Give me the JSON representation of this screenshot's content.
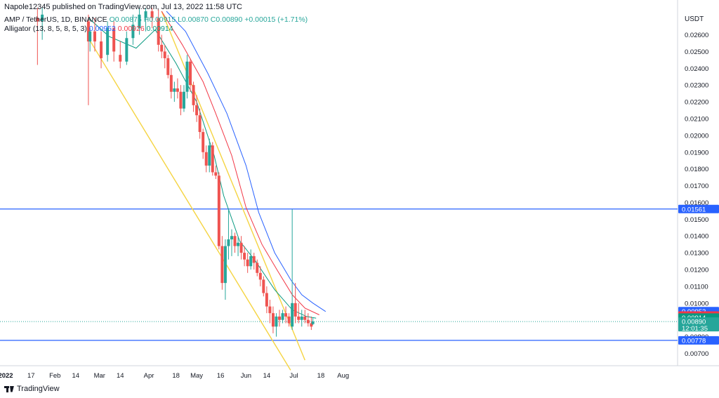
{
  "header": {
    "published": "Napole12345 published on TradingView.com, Jul 13, 2022 11:58 UTC"
  },
  "legend": {
    "symbol": "AMP / TetherUS, 1D, BINANCE",
    "ohlc": "O0.00875 H0.00915 L0.00870 C0.00890 +0.00015 (+1.71%)",
    "alligator_label": "Alligator (13, 8, 5, 8, 5, 3)",
    "jaw": "0.00952",
    "teeth": "0.00926",
    "lips": "0.00914"
  },
  "branding": {
    "name": "TradingView"
  },
  "colors": {
    "up": "#26a69a",
    "down": "#ef5350",
    "jaw": "#2962ff",
    "teeth": "#f23645",
    "lips": "#089981",
    "trendline": "#f5d442",
    "hline": "#2962ff"
  },
  "chart_data": {
    "type": "candlestick",
    "title": "AMP / TetherUS, 1D, BINANCE",
    "y_axis_currency": "USDT",
    "ylim": [
      0.0063,
      0.0276
    ],
    "y_ticks": [
      "0.02600",
      "0.02500",
      "0.02400",
      "0.02300",
      "0.02200",
      "0.02100",
      "0.02000",
      "0.01900",
      "0.01800",
      "0.01700",
      "0.01600",
      "0.01500",
      "0.01400",
      "0.01300",
      "0.01200",
      "0.01100",
      "0.01000",
      "0.00900",
      "0.00800",
      "0.00700"
    ],
    "x_ticks": [
      "2022",
      "17",
      "Feb",
      "14",
      "Mar",
      "14",
      "Apr",
      "18",
      "May",
      "16",
      "Jun",
      "14",
      "Jul",
      "18",
      "Aug"
    ],
    "price_labels": [
      {
        "label": "0.01561",
        "value": 0.01561,
        "color": "#2962ff"
      },
      {
        "label": "0.00952",
        "value": 0.00952,
        "color": "#2962ff"
      },
      {
        "label": "0.00926",
        "value": 0.00926,
        "color": "#f23645"
      },
      {
        "label": "0.00914",
        "value": 0.00914,
        "color": "#089981"
      },
      {
        "label": "0.00890",
        "value": 0.0089,
        "color": "#26a69a",
        "sub": "12:01:35"
      },
      {
        "label": "0.00778",
        "value": 0.00778,
        "color": "#2962ff"
      }
    ],
    "horizontal_lines": [
      0.01561,
      0.00778
    ],
    "trendlines": [
      {
        "from": [
          "2022-02-22",
          0.0258
        ],
        "to": [
          "2022-06-29",
          0.006
        ]
      },
      {
        "from": [
          "2022-04-09",
          0.0274
        ],
        "to": [
          "2022-07-08",
          0.0066
        ]
      }
    ],
    "alligator": {
      "jaw": [
        [
          "2022-04-12",
          0.0274
        ],
        [
          "2022-04-24",
          0.0262
        ],
        [
          "2022-05-08",
          0.0237
        ],
        [
          "2022-05-20",
          0.0213
        ],
        [
          "2022-06-01",
          0.0182
        ],
        [
          "2022-06-09",
          0.0154
        ],
        [
          "2022-06-19",
          0.013
        ],
        [
          "2022-06-29",
          0.0114
        ],
        [
          "2022-07-06",
          0.0105
        ],
        [
          "2022-07-13",
          0.01
        ],
        [
          "2022-07-21",
          0.0095
        ]
      ],
      "teeth": [
        [
          "2022-04-09",
          0.0274
        ],
        [
          "2022-04-22",
          0.0254
        ],
        [
          "2022-05-05",
          0.0232
        ],
        [
          "2022-05-13",
          0.0213
        ],
        [
          "2022-05-23",
          0.0188
        ],
        [
          "2022-06-01",
          0.0157
        ],
        [
          "2022-06-11",
          0.0135
        ],
        [
          "2022-06-21",
          0.0119
        ],
        [
          "2022-06-30",
          0.0105
        ],
        [
          "2022-07-08",
          0.0097
        ],
        [
          "2022-07-17",
          0.0093
        ]
      ],
      "lips": [
        [
          "2022-02-22",
          0.027
        ],
        [
          "2022-03-07",
          0.0259
        ],
        [
          "2022-03-24",
          0.0252
        ],
        [
          "2022-04-05",
          0.0263
        ],
        [
          "2022-04-18",
          0.0243
        ],
        [
          "2022-05-01",
          0.022
        ],
        [
          "2022-05-12",
          0.0188
        ],
        [
          "2022-05-18",
          0.0164
        ],
        [
          "2022-05-28",
          0.0137
        ],
        [
          "2022-06-07",
          0.0125
        ],
        [
          "2022-06-19",
          0.0108
        ],
        [
          "2022-06-30",
          0.0096
        ],
        [
          "2022-07-09",
          0.0092
        ],
        [
          "2022-07-15",
          0.0091
        ]
      ]
    },
    "candles": [
      [
        "2022-01-21",
        0.027,
        0.0276,
        0.0242,
        0.0268
      ],
      [
        "2022-01-24",
        0.0268,
        0.0276,
        0.0257,
        0.0272
      ],
      [
        "2022-02-22",
        0.0268,
        0.0272,
        0.0218,
        0.0256
      ],
      [
        "2022-02-23",
        0.0256,
        0.0264,
        0.025,
        0.0262
      ],
      [
        "2022-02-26",
        0.0262,
        0.027,
        0.025,
        0.0256
      ],
      [
        "2022-03-02",
        0.0256,
        0.0262,
        0.024,
        0.0246
      ],
      [
        "2022-03-06",
        0.0248,
        0.0268,
        0.0244,
        0.0264
      ],
      [
        "2022-03-10",
        0.0264,
        0.0268,
        0.0244,
        0.025
      ],
      [
        "2022-03-14",
        0.0248,
        0.0256,
        0.024,
        0.0244
      ],
      [
        "2022-03-18",
        0.0244,
        0.0262,
        0.0242,
        0.0258
      ],
      [
        "2022-03-22",
        0.0258,
        0.0272,
        0.0254,
        0.0266
      ],
      [
        "2022-03-26",
        0.0264,
        0.0276,
        0.026,
        0.0272
      ],
      [
        "2022-03-30",
        0.027,
        0.0276,
        0.0262,
        0.0274
      ],
      [
        "2022-04-03",
        0.0274,
        0.0276,
        0.0264,
        0.027
      ],
      [
        "2022-04-07",
        0.027,
        0.0275,
        0.025,
        0.0254
      ],
      [
        "2022-04-09",
        0.0254,
        0.026,
        0.0246,
        0.025
      ],
      [
        "2022-04-11",
        0.025,
        0.0254,
        0.024,
        0.0246
      ],
      [
        "2022-04-13",
        0.0246,
        0.0248,
        0.0234,
        0.0236
      ],
      [
        "2022-04-15",
        0.0236,
        0.024,
        0.0222,
        0.0226
      ],
      [
        "2022-04-17",
        0.0226,
        0.0232,
        0.022,
        0.0228
      ],
      [
        "2022-04-19",
        0.0228,
        0.0234,
        0.0222,
        0.0226
      ],
      [
        "2022-04-21",
        0.0226,
        0.023,
        0.0212,
        0.0216
      ],
      [
        "2022-04-23",
        0.0216,
        0.023,
        0.0214,
        0.0226
      ],
      [
        "2022-04-25",
        0.0226,
        0.0248,
        0.0222,
        0.0244
      ],
      [
        "2022-04-27",
        0.0244,
        0.0246,
        0.0226,
        0.023
      ],
      [
        "2022-04-29",
        0.023,
        0.0232,
        0.0214,
        0.0218
      ],
      [
        "2022-05-01",
        0.0218,
        0.0224,
        0.0208,
        0.0212
      ],
      [
        "2022-05-03",
        0.0212,
        0.0216,
        0.0198,
        0.0202
      ],
      [
        "2022-05-05",
        0.0202,
        0.0204,
        0.0186,
        0.019
      ],
      [
        "2022-05-07",
        0.019,
        0.0194,
        0.0178,
        0.0182
      ],
      [
        "2022-05-09",
        0.0182,
        0.0198,
        0.0178,
        0.0194
      ],
      [
        "2022-05-11",
        0.0194,
        0.0196,
        0.0176,
        0.0178
      ],
      [
        "2022-05-13",
        0.0178,
        0.0182,
        0.0174,
        0.0176
      ],
      [
        "2022-05-15",
        0.0176,
        0.0178,
        0.0132,
        0.0134
      ],
      [
        "2022-05-17",
        0.0134,
        0.014,
        0.0108,
        0.0112
      ],
      [
        "2022-05-19",
        0.0112,
        0.0138,
        0.0102,
        0.0134
      ],
      [
        "2022-05-21",
        0.0134,
        0.0156,
        0.0126,
        0.0138
      ],
      [
        "2022-05-23",
        0.0138,
        0.0144,
        0.0128,
        0.014
      ],
      [
        "2022-05-25",
        0.014,
        0.0142,
        0.013,
        0.0134
      ],
      [
        "2022-05-27",
        0.0134,
        0.014,
        0.0128,
        0.0136
      ],
      [
        "2022-05-29",
        0.0136,
        0.014,
        0.0126,
        0.013
      ],
      [
        "2022-05-31",
        0.013,
        0.0134,
        0.0122,
        0.0126
      ],
      [
        "2022-06-02",
        0.0126,
        0.013,
        0.0118,
        0.0122
      ],
      [
        "2022-06-04",
        0.0122,
        0.0132,
        0.012,
        0.0128
      ],
      [
        "2022-06-06",
        0.0128,
        0.013,
        0.012,
        0.0124
      ],
      [
        "2022-06-08",
        0.0124,
        0.0126,
        0.0116,
        0.0118
      ],
      [
        "2022-06-10",
        0.0118,
        0.0122,
        0.011,
        0.0114
      ],
      [
        "2022-06-12",
        0.0114,
        0.0116,
        0.0104,
        0.0106
      ],
      [
        "2022-06-14",
        0.0106,
        0.011,
        0.0094,
        0.0098
      ],
      [
        "2022-06-16",
        0.0098,
        0.0102,
        0.0088,
        0.0094
      ],
      [
        "2022-06-18",
        0.0094,
        0.0098,
        0.0082,
        0.0086
      ],
      [
        "2022-06-20",
        0.0086,
        0.0094,
        0.008,
        0.0092
      ],
      [
        "2022-06-22",
        0.0092,
        0.0096,
        0.0086,
        0.009
      ],
      [
        "2022-06-24",
        0.009,
        0.0096,
        0.0088,
        0.0094
      ],
      [
        "2022-06-26",
        0.0094,
        0.0098,
        0.0088,
        0.0092
      ],
      [
        "2022-06-28",
        0.0092,
        0.0094,
        0.0086,
        0.0088
      ],
      [
        "2022-06-30",
        0.0086,
        0.0156,
        0.0084,
        0.01
      ],
      [
        "2022-07-02",
        0.01,
        0.0112,
        0.0088,
        0.0092
      ],
      [
        "2022-07-04",
        0.0092,
        0.01,
        0.0088,
        0.009
      ],
      [
        "2022-07-06",
        0.009,
        0.0096,
        0.0086,
        0.0092
      ],
      [
        "2022-07-08",
        0.0092,
        0.0096,
        0.0088,
        0.009
      ],
      [
        "2022-07-10",
        0.009,
        0.0094,
        0.0086,
        0.0088
      ],
      [
        "2022-07-12",
        0.0088,
        0.0092,
        0.0084,
        0.0086
      ],
      [
        "2022-07-13",
        0.00875,
        0.00915,
        0.0087,
        0.0089
      ]
    ]
  }
}
